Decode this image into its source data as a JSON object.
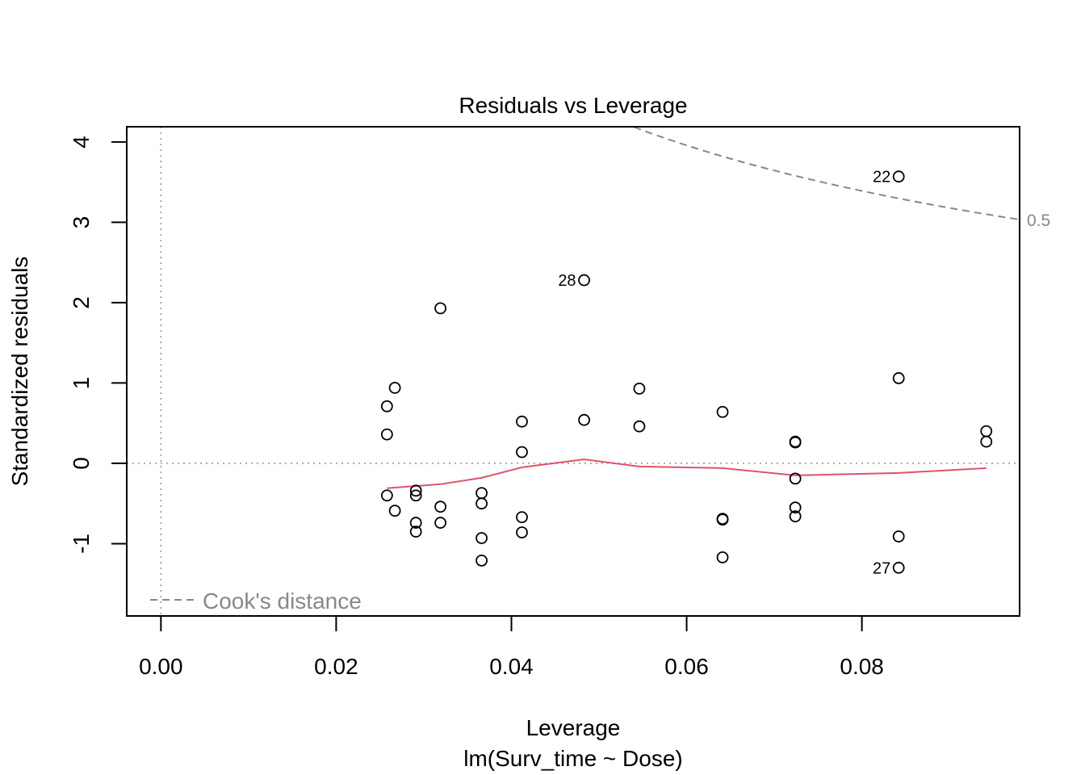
{
  "chart_data": {
    "type": "scatter",
    "title": "Residuals vs Leverage",
    "xlabel": "Leverage",
    "subtitle": "lm(Surv_time ~ Dose)",
    "ylabel": "Standardized residuals",
    "xlim": [
      -0.0039,
      0.098
    ],
    "ylim": [
      -1.9,
      4.19
    ],
    "xticks": [
      0.0,
      0.02,
      0.04,
      0.06,
      0.08
    ],
    "xtick_labels": [
      "0.00",
      "0.02",
      "0.04",
      "0.06",
      "0.08"
    ],
    "yticks": [
      -1,
      0,
      1,
      2,
      3,
      4
    ],
    "ytick_labels": [
      "-1",
      "0",
      "1",
      "2",
      "3",
      "4"
    ],
    "points": [
      [
        0.0258,
        0.71
      ],
      [
        0.0267,
        0.94
      ],
      [
        0.0258,
        0.36
      ],
      [
        0.0258,
        -0.4
      ],
      [
        0.0267,
        -0.59
      ],
      [
        0.0291,
        -0.34
      ],
      [
        0.0291,
        -0.4
      ],
      [
        0.0291,
        -0.74
      ],
      [
        0.0291,
        -0.85
      ],
      [
        0.0319,
        1.93
      ],
      [
        0.0319,
        -0.54
      ],
      [
        0.0319,
        -0.74
      ],
      [
        0.0366,
        -0.37
      ],
      [
        0.0366,
        -0.5
      ],
      [
        0.0366,
        -0.93
      ],
      [
        0.0366,
        -1.21
      ],
      [
        0.0412,
        0.52
      ],
      [
        0.0412,
        0.14
      ],
      [
        0.0412,
        -0.67
      ],
      [
        0.0412,
        -0.86
      ],
      [
        0.0483,
        2.28
      ],
      [
        0.0483,
        0.54
      ],
      [
        0.0546,
        0.93
      ],
      [
        0.0546,
        0.46
      ],
      [
        0.0641,
        0.64
      ],
      [
        0.0641,
        -0.69
      ],
      [
        0.0641,
        -0.7
      ],
      [
        0.0641,
        -1.17
      ],
      [
        0.0724,
        0.27
      ],
      [
        0.0724,
        0.26
      ],
      [
        0.0724,
        -0.19
      ],
      [
        0.0724,
        -0.55
      ],
      [
        0.0724,
        -0.66
      ],
      [
        0.0842,
        3.57
      ],
      [
        0.0842,
        1.06
      ],
      [
        0.0842,
        -0.91
      ],
      [
        0.0842,
        -1.3
      ],
      [
        0.0942,
        0.4
      ],
      [
        0.0942,
        0.27
      ]
    ],
    "labeled_points": [
      {
        "label": "22",
        "x": 0.0842,
        "y": 3.57
      },
      {
        "label": "28",
        "x": 0.0483,
        "y": 2.28
      },
      {
        "label": "27",
        "x": 0.0842,
        "y": -1.3
      }
    ],
    "smooth_line": {
      "color": "#DF536B",
      "x": [
        0.0258,
        0.0319,
        0.0366,
        0.0412,
        0.0483,
        0.0546,
        0.0641,
        0.0724,
        0.0842,
        0.0942
      ],
      "y": [
        -0.31,
        -0.26,
        -0.18,
        -0.05,
        0.05,
        -0.04,
        -0.06,
        -0.15,
        -0.12,
        -0.06
      ]
    },
    "cooks_distance": {
      "level": 0.5,
      "label": "0.5",
      "p": 2,
      "color": "#888888"
    },
    "legend": {
      "label": "Cook's distance",
      "placement": "bottom-left"
    },
    "reference_lines": {
      "h": 0,
      "v": 0,
      "color": "#AAAAAA"
    },
    "grid": false
  }
}
